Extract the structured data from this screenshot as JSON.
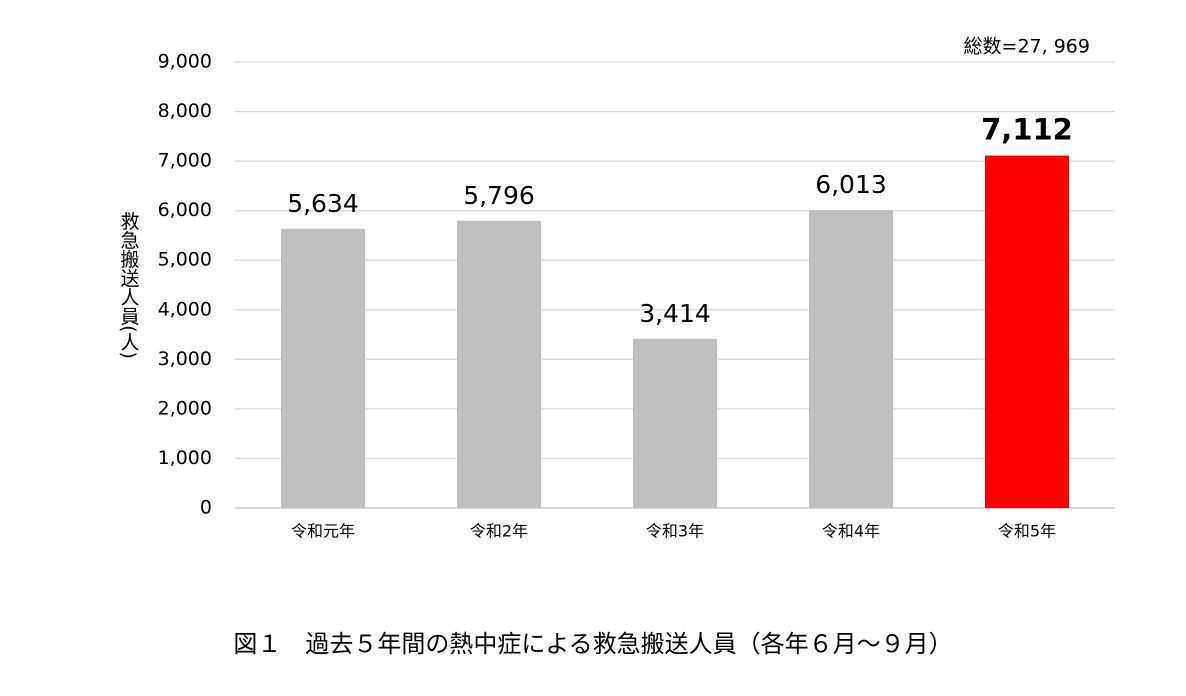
{
  "chart_data": {
    "type": "bar",
    "title": "図１　過去５年間の熱中症による救急搬送人員（各年６月～９月）",
    "annotation": "総数=27, 969",
    "y_label": "救急搬送人員(人)",
    "categories": [
      "令和元年",
      "令和2年",
      "令和3年",
      "令和4年",
      "令和5年"
    ],
    "values": [
      5634,
      5796,
      3414,
      6013,
      7112
    ],
    "value_labels": [
      "5,634",
      "5,796",
      "3,414",
      "6,013",
      "7,112"
    ],
    "colors": [
      "#bfbfbf",
      "#bfbfbf",
      "#bfbfbf",
      "#bfbfbf",
      "#ff0000"
    ],
    "ylim": [
      0,
      9000
    ],
    "yticks": [
      0,
      {
        "value": 1000,
        "label": "1,000"
      },
      {
        "value": 2000,
        "label": "2,000"
      },
      {
        "value": 3000,
        "label": "3,000"
      },
      {
        "value": 4000,
        "label": "4,000"
      },
      {
        "value": 5000,
        "label": "5,000"
      },
      {
        "value": 6000,
        "label": "6,000"
      },
      {
        "value": 7000,
        "label": "7,000"
      },
      {
        "value": 8000,
        "label": "8,000"
      },
      {
        "value": 9000,
        "label": "9,000"
      }
    ],
    "grid": true
  }
}
